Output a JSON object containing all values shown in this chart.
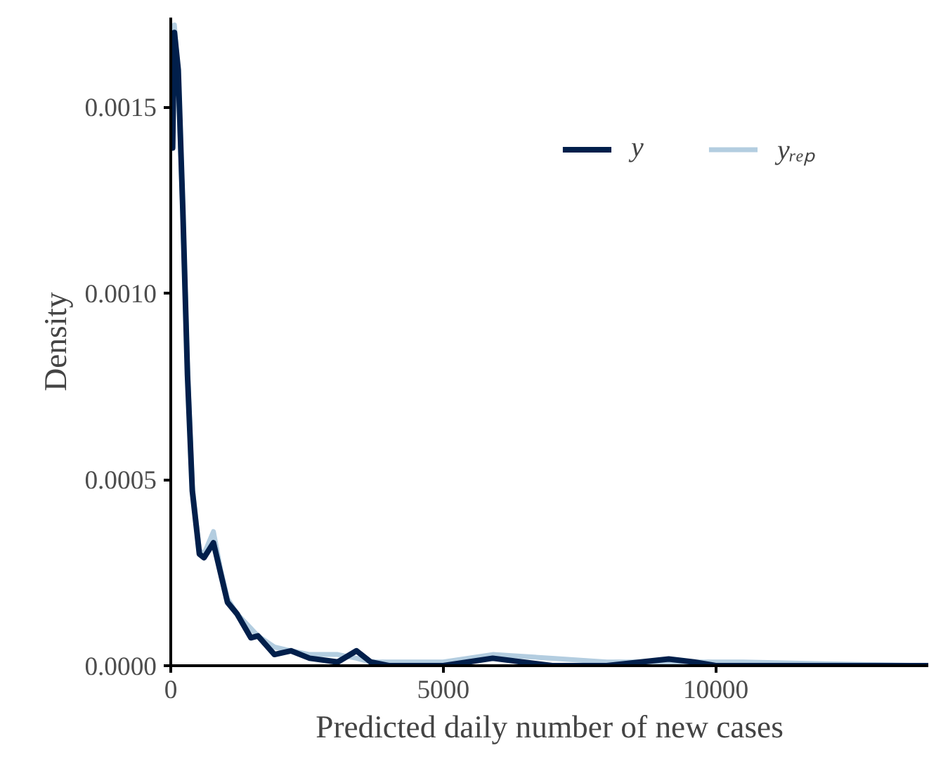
{
  "chart_data": {
    "type": "line",
    "xlabel": "Predicted daily number of new cases",
    "ylabel": "Density",
    "xlim": [
      0,
      13900
    ],
    "ylim": [
      0,
      0.00174
    ],
    "xticks": [
      0,
      5000,
      10000
    ],
    "yticks": [
      {
        "value": 0,
        "label": "0.0000"
      },
      {
        "value": 0.0005,
        "label": "0.0005"
      },
      {
        "value": 0.001,
        "label": "0.0010"
      },
      {
        "value": 0.0015,
        "label": "0.0015"
      }
    ],
    "grid": false,
    "legend": "top right",
    "line_style": "solid",
    "marker": "none",
    "series": [
      {
        "name": "yᵣₑₚ",
        "color": "#b3cde0",
        "x": [
          0,
          34,
          67,
          137,
          222,
          307,
          395,
          525,
          610,
          783,
          912,
          1041,
          1212,
          1470,
          1600,
          1902,
          2204,
          2548,
          3064,
          3408,
          3667,
          4000,
          5000,
          5907,
          7000,
          8000,
          9137,
          9600,
          10500,
          12000,
          13900
        ],
        "values": [
          0.0015,
          0.00145,
          0.00172,
          0.00158,
          0.00121,
          0.0008,
          0.00048,
          0.00031,
          0.0003,
          0.00036,
          0.00026,
          0.00018,
          0.00014,
          0.0001,
          8e-05,
          5e-05,
          4e-05,
          3e-05,
          3e-05,
          2e-05,
          1e-05,
          1e-05,
          1e-05,
          3e-05,
          2e-05,
          1e-05,
          1e-05,
          1e-05,
          1e-05,
          5e-06,
          0
        ]
      },
      {
        "name": "y",
        "color": "#011f4b",
        "x": [
          0,
          34,
          67,
          137,
          222,
          307,
          395,
          525,
          610,
          783,
          912,
          1041,
          1212,
          1470,
          1600,
          1902,
          2204,
          2548,
          3064,
          3408,
          3667,
          4000,
          5000,
          5907,
          7000,
          8000,
          9137,
          9600,
          10000,
          12000,
          13900
        ],
        "values": [
          0.00139,
          0.00139,
          0.0017,
          0.0016,
          0.00122,
          0.00078,
          0.00047,
          0.0003,
          0.00029,
          0.00033,
          0.00025,
          0.00017,
          0.00014,
          7.5e-05,
          8e-05,
          3e-05,
          4e-05,
          2e-05,
          1e-05,
          4e-05,
          1e-05,
          0,
          0,
          2e-05,
          0,
          0,
          1.8e-05,
          1e-05,
          0,
          0,
          0
        ]
      }
    ]
  }
}
